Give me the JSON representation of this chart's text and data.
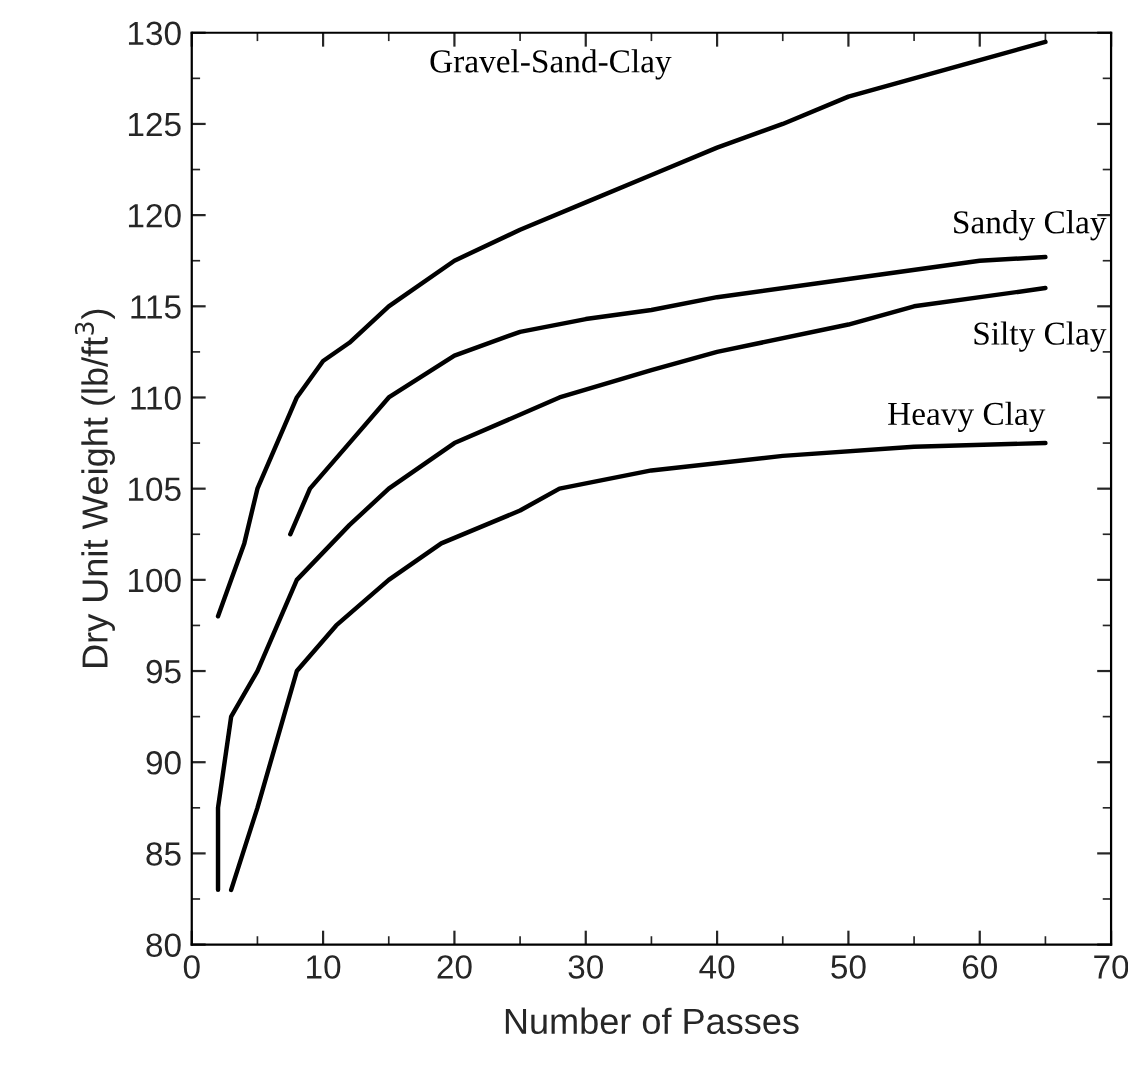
{
  "chart_data": {
    "type": "line",
    "xlabel": "Number of Passes",
    "ylabel": "Dry Unit Weight (lb/ft$^{3}$)",
    "xlim": [
      0,
      70
    ],
    "xticks": [
      0,
      10,
      20,
      30,
      40,
      50,
      60,
      70
    ],
    "ylim": [
      80,
      130
    ],
    "yticks": [
      80,
      85,
      90,
      95,
      100,
      105,
      110,
      115,
      120,
      125,
      130
    ],
    "grid": false,
    "legend": false,
    "marker": "none",
    "line_style": "solid",
    "series": [
      {
        "name": "Gravel-Sand-Clay",
        "color": "#000000",
        "x": [
          2,
          3,
          4,
          5,
          8,
          10,
          12,
          15,
          20,
          25,
          30,
          35,
          40,
          45,
          50,
          55,
          60,
          65
        ],
        "values": [
          98,
          100,
          102,
          105,
          110,
          112,
          113,
          115,
          117.5,
          119.2,
          120.7,
          122.2,
          123.7,
          125,
          126.5,
          127.5,
          128.5,
          129.5
        ]
      },
      {
        "name": "Sandy Clay",
        "color": "#000000",
        "x": [
          7.5,
          9,
          12,
          15,
          20,
          25,
          30,
          35,
          40,
          50,
          60,
          65
        ],
        "values": [
          102.5,
          105,
          107.5,
          110,
          112.3,
          113.6,
          114.3,
          114.8,
          115.5,
          116.5,
          117.5,
          117.7
        ]
      },
      {
        "name": "Silty Clay",
        "color": "#000000",
        "x": [
          2,
          2,
          2.5,
          3,
          5,
          8,
          12,
          15,
          20,
          28,
          35,
          40,
          50,
          55,
          65
        ],
        "values": [
          83,
          87.5,
          90,
          92.5,
          95,
          100,
          103,
          105,
          107.5,
          110,
          111.5,
          112.5,
          114,
          115,
          116
        ]
      },
      {
        "name": "Heavy Clay",
        "color": "#000000",
        "x": [
          3,
          5,
          7,
          8,
          11,
          15,
          19,
          25,
          28,
          35,
          45,
          55,
          65
        ],
        "values": [
          83,
          87.5,
          92.5,
          95,
          97.5,
          100,
          102,
          103.8,
          105,
          106,
          106.8,
          107.3,
          107.5
        ]
      }
    ]
  }
}
